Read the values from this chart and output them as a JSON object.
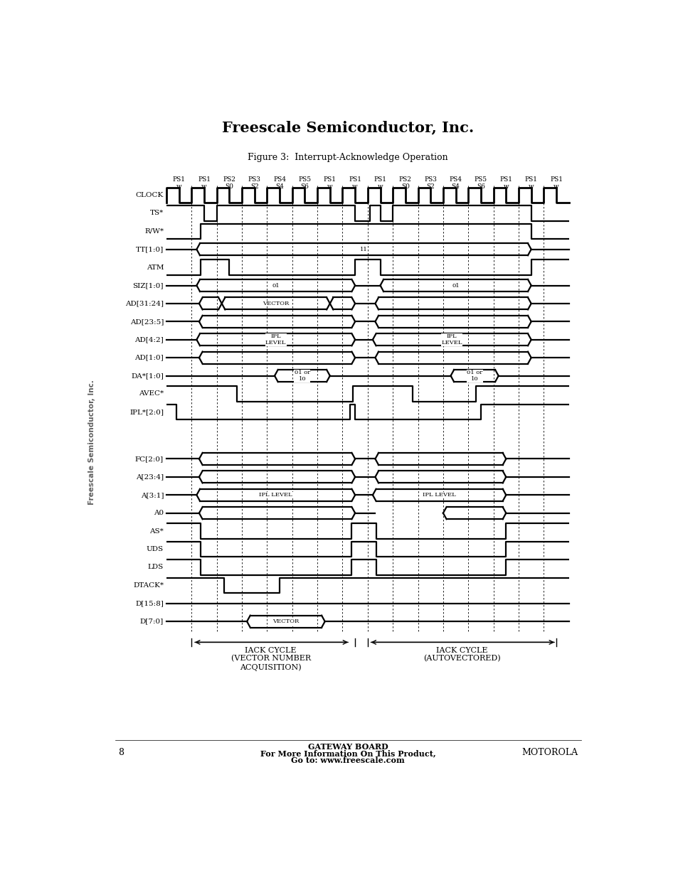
{
  "title": "Freescale Semiconductor, Inc.",
  "figure_title": "Figure 3:  Interrupt-Acknowledge Operation",
  "page_num": "8",
  "footer_line1": "GATEWAY BOARD",
  "footer_line2": "For More Information On This Product,",
  "footer_line3": "Go to: www.freescale.com",
  "footer_right": "MOTOROLA",
  "sidebar_text": "Freescale Semiconductor, Inc.",
  "ps_labels": [
    "PS1",
    "PS1",
    "PS2",
    "PS3",
    "PS4",
    "PS5",
    "PS1",
    "PS1",
    "PS1",
    "PS2",
    "PS3",
    "PS4",
    "PS5",
    "PS1",
    "PS1",
    "PS1"
  ],
  "sub_labels": [
    "w",
    "w",
    "S0",
    "S2",
    "S4",
    "S6",
    "w",
    "w",
    "w",
    "S0",
    "S2",
    "S4",
    "S6",
    "w",
    "w",
    "w"
  ],
  "signal_names": [
    "CLOCK",
    "TS*",
    "R/W*",
    "TT[1:0]",
    "ATM",
    "SIZ[1:0]",
    "AD[31:24]",
    "AD[23:5]",
    "AD[4:2]",
    "AD[1:0]",
    "DA*[1:0]",
    "AVEC*",
    "IPL*[2:0]",
    "",
    "FC[2:0]",
    "A[23:4]",
    "A[3:1]",
    "A0",
    "AS*",
    "UDS",
    "LDS",
    "DTACK*",
    "D[15:8]",
    "D[7:0]"
  ],
  "iack1_label": "IACK CYCLE\n(VECTOR NUMBER\nACQUISITION)",
  "iack2_label": "IACK CYCLE\n(AUTOVECTORED)"
}
